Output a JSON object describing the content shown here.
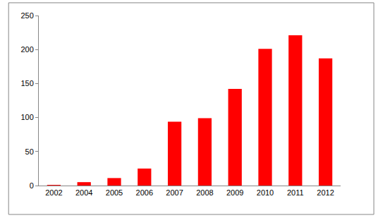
{
  "chart_data": {
    "type": "bar",
    "categories": [
      "2002",
      "2004",
      "2005",
      "2006",
      "2007",
      "2008",
      "2009",
      "2010",
      "2011",
      "2012"
    ],
    "values": [
      1,
      5,
      11,
      25,
      94,
      99,
      142,
      201,
      221,
      187
    ],
    "color": "#ff0000",
    "ylim": [
      0,
      250
    ],
    "yticks": [
      0,
      50,
      100,
      150,
      200,
      250
    ],
    "grid": false
  }
}
